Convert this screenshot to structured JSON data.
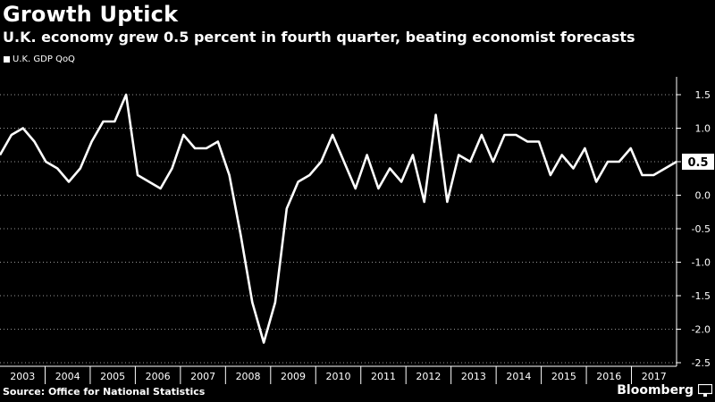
{
  "header": {
    "title": "Growth Uptick",
    "subtitle": "U.K. economy grew 0.5 percent in fourth quarter, beating economist forecasts"
  },
  "footer": {
    "source": "Source: Office for National Statistics",
    "brand": "Bloomberg"
  },
  "colors": {
    "background": "#000000",
    "line": "#ffffff",
    "text": "#ffffff",
    "grid": "#bfbfbf"
  },
  "chart_data": {
    "type": "line",
    "title": "Growth Uptick",
    "subtitle": "U.K. economy grew 0.5 percent in fourth quarter, beating economist forecasts",
    "xlabel": "",
    "ylabel": "",
    "ylim": [
      -2.5,
      1.5
    ],
    "y_ticks": [
      "1.5",
      "1.0",
      "0.5",
      "0.0",
      "-0.5",
      "-1.0",
      "-1.5",
      "-2.0",
      "-2.5"
    ],
    "x_ticks": [
      "2003",
      "2004",
      "2005",
      "2006",
      "2007",
      "2008",
      "2009",
      "2010",
      "2011",
      "2012",
      "2013",
      "2014",
      "2015",
      "2016",
      "2017"
    ],
    "grid": true,
    "legend": "top-left",
    "last_value_label": "0.5",
    "series": [
      {
        "name": "U.K. GDP QoQ",
        "values": [
          0.6,
          0.9,
          1.0,
          0.8,
          0.5,
          0.4,
          0.2,
          0.4,
          0.8,
          1.1,
          1.1,
          1.5,
          0.3,
          0.2,
          0.1,
          0.4,
          0.9,
          0.7,
          0.7,
          0.8,
          0.3,
          -0.6,
          -1.6,
          -2.2,
          -1.6,
          -0.2,
          0.2,
          0.3,
          0.5,
          0.9,
          0.5,
          0.1,
          0.6,
          0.1,
          0.4,
          0.2,
          0.6,
          -0.1,
          1.2,
          -0.1,
          0.6,
          0.5,
          0.9,
          0.5,
          0.9,
          0.9,
          0.8,
          0.8,
          0.3,
          0.6,
          0.4,
          0.7,
          0.2,
          0.5,
          0.5,
          0.7,
          0.3,
          0.3,
          0.4,
          0.5
        ]
      }
    ]
  }
}
